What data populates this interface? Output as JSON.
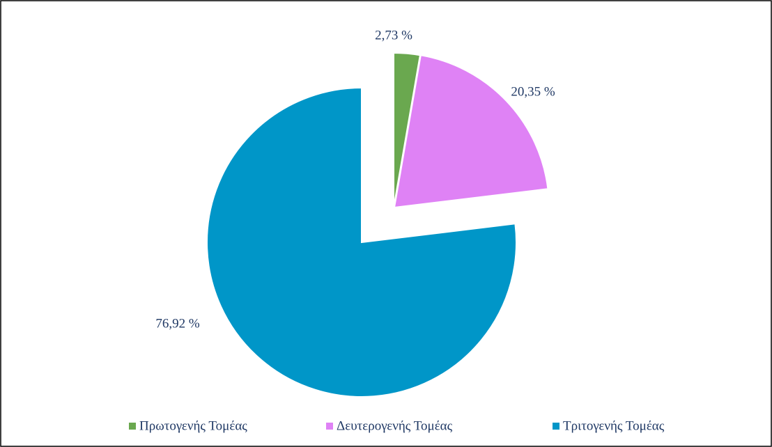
{
  "chart_data": {
    "type": "pie",
    "categories": [
      "Πρωτογενής Τομέας",
      "Δευτερογενής Τομέας",
      "Τριτογενής Τομέας"
    ],
    "values": [
      2.73,
      20.35,
      76.92
    ],
    "value_labels": [
      "2,73 %",
      "20,35 %",
      "76,92 %"
    ],
    "colors": [
      "#6aa84f",
      "#df82f5",
      "#0096c8"
    ],
    "legend": "bottom"
  }
}
